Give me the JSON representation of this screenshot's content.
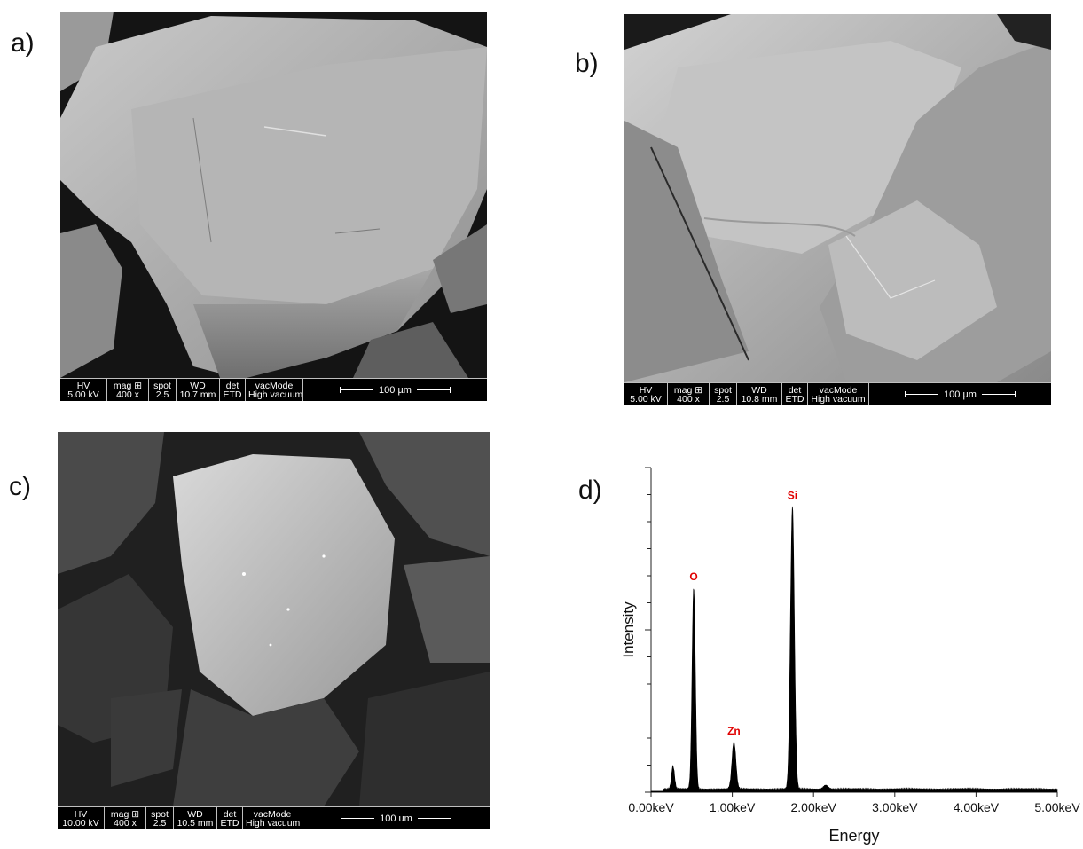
{
  "panels": [
    {
      "label": "a)",
      "databar": {
        "hv_header": "HV",
        "hv": "5.00 kV",
        "mag_header": "mag ⊞",
        "mag": "400 x",
        "spot_header": "spot",
        "spot": "2.5",
        "wd_header": "WD",
        "wd": "10.7 mm",
        "det_header": "det",
        "det": "ETD",
        "vac_header": "vacMode",
        "vac": "High vacuum",
        "scale": "100 µm"
      }
    },
    {
      "label": "b)",
      "databar": {
        "hv_header": "HV",
        "hv": "5.00 kV",
        "mag_header": "mag ⊞",
        "mag": "400 x",
        "spot_header": "spot",
        "spot": "2.5",
        "wd_header": "WD",
        "wd": "10.8 mm",
        "det_header": "det",
        "det": "ETD",
        "vac_header": "vacMode",
        "vac": "High vacuum",
        "scale": "100 µm"
      }
    },
    {
      "label": "c)",
      "databar": {
        "hv_header": "HV",
        "hv": "10.00 kV",
        "mag_header": "mag ⊞",
        "mag": "400 x",
        "spot_header": "spot",
        "spot": "2.5",
        "wd_header": "WD",
        "wd": "10.5 mm",
        "det_header": "det",
        "det": "ETD",
        "vac_header": "vacMode",
        "vac": "High vacuum",
        "scale": "100 um"
      }
    },
    {
      "label": "d)"
    }
  ],
  "chart_data": {
    "type": "line",
    "xlabel": "Energy",
    "ylabel": "Intensity",
    "xlim": [
      0,
      5
    ],
    "ylim": [
      0,
      100
    ],
    "x_ticks": [
      "0.00keV",
      "1.00keV",
      "2.00keV",
      "3.00keV",
      "4.00keV",
      "5.00keV"
    ],
    "x_tick_values": [
      0,
      1,
      2,
      3,
      4,
      5
    ],
    "series": [
      {
        "peaks": [
          {
            "label": "",
            "x": 0.27,
            "y": 7,
            "w": 0.018
          },
          {
            "label": "O",
            "x": 0.525,
            "y": 62,
            "w": 0.02
          },
          {
            "label": "Zn",
            "x": 1.02,
            "y": 14.5,
            "w": 0.024
          },
          {
            "label": "Si",
            "x": 1.74,
            "y": 87,
            "w": 0.024
          },
          {
            "label": "",
            "x": 2.15,
            "y": 1.2,
            "w": 0.03
          }
        ],
        "baseline": 0.8
      }
    ],
    "colors": {
      "fill": "#000000",
      "peak_label": "#e00000"
    }
  }
}
